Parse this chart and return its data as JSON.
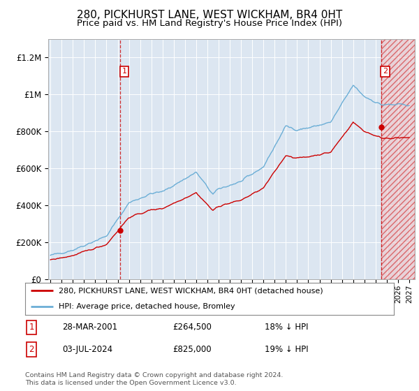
{
  "title": "280, PICKHURST LANE, WEST WICKHAM, BR4 0HT",
  "subtitle": "Price paid vs. HM Land Registry's House Price Index (HPI)",
  "plot_bg_color": "#dce6f1",
  "ylim": [
    0,
    1300000
  ],
  "yticks": [
    0,
    200000,
    400000,
    600000,
    800000,
    1000000,
    1200000
  ],
  "ytick_labels": [
    "£0",
    "£200K",
    "£400K",
    "£600K",
    "£800K",
    "£1M",
    "£1.2M"
  ],
  "hpi_color": "#6baed6",
  "price_color": "#cc0000",
  "sale1_t": 2001.23,
  "sale2_t": 2024.5,
  "sale1_price": 264500,
  "sale2_price": 825000,
  "legend_entry1": "280, PICKHURST LANE, WEST WICKHAM, BR4 0HT (detached house)",
  "legend_entry2": "HPI: Average price, detached house, Bromley",
  "note1_num": "1",
  "note1_date": "28-MAR-2001",
  "note1_price": "£264,500",
  "note1_hpi": "18% ↓ HPI",
  "note2_num": "2",
  "note2_date": "03-JUL-2024",
  "note2_price": "£825,000",
  "note2_hpi": "19% ↓ HPI",
  "footer": "Contains HM Land Registry data © Crown copyright and database right 2024.\nThis data is licensed under the Open Government Licence v3.0.",
  "xlim_min": 1994.8,
  "xlim_max": 2027.5,
  "hatch_start": 2024.5,
  "hatch_end": 2027.5
}
